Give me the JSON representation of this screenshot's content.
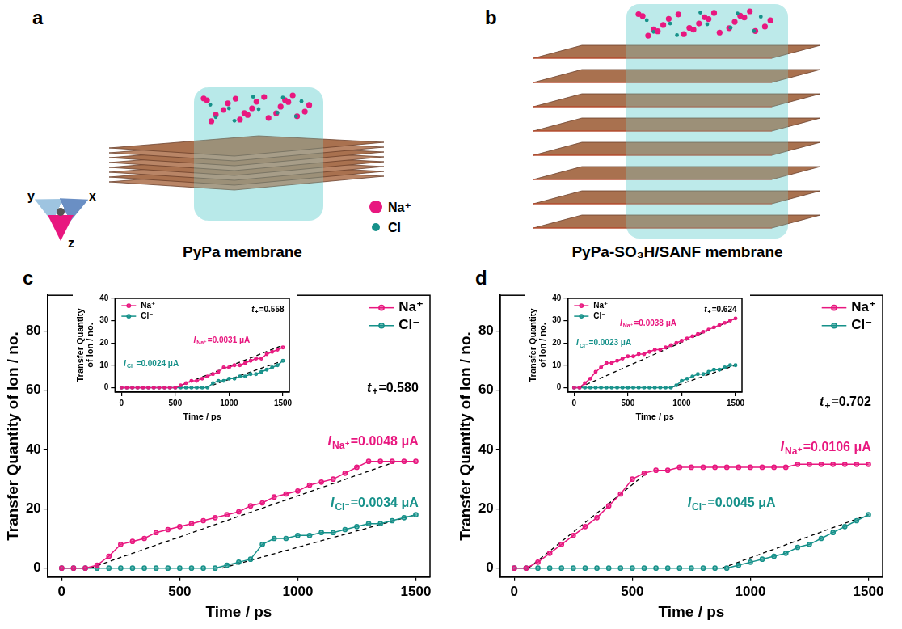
{
  "panels": [
    {
      "letter": "a",
      "caption": "PyPa membrane"
    },
    {
      "letter": "b",
      "caption": "PyPa-SO₃H/SANF membrane"
    }
  ],
  "axes_labels": [
    "y",
    "x",
    "z"
  ],
  "species": [
    {
      "name": "Na⁺",
      "color": "#e8177f"
    },
    {
      "name": "Cl⁻",
      "color": "#16918a"
    }
  ],
  "chart_data": [
    {
      "type": "line",
      "label": "c",
      "x_label": "Time / ps",
      "y_label": "Transfer Quantity of Ion / no.",
      "x": [
        0,
        50,
        100,
        150,
        200,
        250,
        300,
        350,
        400,
        450,
        500,
        550,
        600,
        650,
        700,
        750,
        800,
        850,
        900,
        950,
        1000,
        1050,
        1100,
        1150,
        1200,
        1250,
        1300,
        1350,
        1400,
        1450,
        1500
      ],
      "series": [
        {
          "name": "Na⁺",
          "color": "#e8177f",
          "values": [
            0,
            0,
            0,
            1,
            4,
            8,
            9,
            10,
            12,
            13,
            14,
            15,
            16,
            17,
            18,
            19,
            21,
            22,
            24,
            25,
            26,
            28,
            29,
            30,
            32,
            34,
            36,
            36,
            36,
            36,
            36
          ]
        },
        {
          "name": "Cl⁻",
          "color": "#16918a",
          "values": [
            0,
            0,
            0,
            0,
            0,
            0,
            0,
            0,
            0,
            0,
            0,
            0,
            0,
            0,
            1,
            2,
            3,
            8,
            10,
            10,
            11,
            11,
            12,
            12,
            13,
            14,
            15,
            15,
            16,
            17,
            18
          ]
        }
      ],
      "fit_lines": [
        {
          "x": [
            120,
            1420
          ],
          "values": [
            0,
            36
          ],
          "color": "#000000",
          "line_style": "dashed"
        },
        {
          "x": [
            680,
            1500
          ],
          "values": [
            0,
            18
          ],
          "color": "#000000",
          "line_style": "dashed"
        }
      ],
      "xlim": [
        -60,
        1560
      ],
      "ylim": [
        -3,
        92
      ],
      "xticks": [
        0,
        500,
        1000,
        1500
      ],
      "yticks": [
        0,
        20,
        40,
        60,
        80
      ],
      "grid": false,
      "legend": "top-right",
      "marker": "circle",
      "annotations": [
        {
          "text": "t",
          "subscript": "+",
          "suffix": "=0.580",
          "color": "#000000"
        },
        {
          "text": "I",
          "subscript": "Na⁺",
          "suffix": "=0.0048 μA",
          "color": "#e8177f"
        },
        {
          "text": "I",
          "subscript": "Cl⁻",
          "suffix": "=0.0034 μA",
          "color": "#16918a"
        }
      ],
      "inset": {
        "type": "line",
        "x_label": "Time / ps",
        "y_label": "Transfer Quantity of Ion / no.",
        "x": [
          0,
          50,
          100,
          150,
          200,
          250,
          300,
          350,
          400,
          450,
          500,
          550,
          600,
          650,
          700,
          750,
          800,
          850,
          900,
          950,
          1000,
          1050,
          1100,
          1150,
          1200,
          1250,
          1300,
          1350,
          1400,
          1450,
          1500
        ],
        "series": [
          {
            "name": "Na⁺",
            "color": "#e8177f",
            "values": [
              0,
              0,
              0,
              0,
              0,
              0,
              0,
              0,
              0,
              0,
              0,
              1,
              2,
              3,
              3,
              4,
              5,
              6,
              7,
              9,
              9,
              10,
              10,
              11,
              12,
              13,
              13,
              15,
              16,
              17,
              18
            ]
          },
          {
            "name": "Cl⁻",
            "color": "#16918a",
            "values": [
              0,
              0,
              0,
              0,
              0,
              0,
              0,
              0,
              0,
              0,
              0,
              0,
              0,
              0,
              0,
              0,
              0,
              2,
              3,
              3,
              4,
              4,
              5,
              5,
              6,
              6,
              7,
              8,
              9,
              10,
              12
            ]
          }
        ],
        "fit_lines": [
          {
            "x": [
              500,
              1500
            ],
            "values": [
              0,
              19
            ],
            "color": "#000000",
            "line_style": "dashed"
          },
          {
            "x": [
              780,
              1500
            ],
            "values": [
              0,
              12
            ],
            "color": "#000000",
            "line_style": "dashed"
          }
        ],
        "xlim": [
          -60,
          1560
        ],
        "ylim": [
          -2,
          40
        ],
        "xticks": [
          0,
          500,
          1000,
          1500
        ],
        "yticks": [
          0,
          10,
          20,
          30,
          40
        ],
        "grid": false,
        "legend": "top-left",
        "marker": "circle",
        "annotations": [
          {
            "text": "t",
            "subscript": "+",
            "suffix": "=0.558",
            "color": "#000000"
          },
          {
            "text": "I",
            "subscript": "Na⁺",
            "suffix": "=0.0031 μA",
            "color": "#e8177f"
          },
          {
            "text": "I",
            "subscript": "Cl⁻",
            "suffix": "=0.0024 μA",
            "color": "#16918a"
          }
        ]
      }
    },
    {
      "type": "line",
      "label": "d",
      "x_label": "Time / ps",
      "y_label": "Transfer Quantity of Ion / no.",
      "x": [
        0,
        50,
        100,
        150,
        200,
        250,
        300,
        350,
        400,
        450,
        500,
        550,
        600,
        650,
        700,
        750,
        800,
        850,
        900,
        950,
        1000,
        1050,
        1100,
        1150,
        1200,
        1250,
        1300,
        1350,
        1400,
        1450,
        1500
      ],
      "series": [
        {
          "name": "Na⁺",
          "color": "#e8177f",
          "values": [
            0,
            0,
            2,
            5,
            8,
            11,
            14,
            17,
            21,
            25,
            30,
            32,
            33,
            33,
            34,
            34,
            34,
            34,
            34,
            34,
            34,
            34,
            34,
            34,
            35,
            35,
            35,
            35,
            35,
            35,
            35
          ]
        },
        {
          "name": "Cl⁻",
          "color": "#16918a",
          "values": [
            0,
            0,
            0,
            0,
            0,
            0,
            0,
            0,
            0,
            0,
            0,
            0,
            0,
            0,
            0,
            0,
            0,
            0,
            0,
            1,
            2,
            3,
            4,
            5,
            7,
            8,
            10,
            12,
            14,
            16,
            18
          ]
        }
      ],
      "fit_lines": [
        {
          "x": [
            60,
            560
          ],
          "values": [
            0,
            32
          ],
          "color": "#000000",
          "line_style": "dashed"
        },
        {
          "x": [
            880,
            1500
          ],
          "values": [
            0,
            18
          ],
          "color": "#000000",
          "line_style": "dashed"
        }
      ],
      "xlim": [
        -60,
        1560
      ],
      "ylim": [
        -3,
        92
      ],
      "xticks": [
        0,
        500,
        1000,
        1500
      ],
      "yticks": [
        0,
        20,
        40,
        60,
        80
      ],
      "grid": false,
      "legend": "top-right",
      "marker": "circle",
      "annotations": [
        {
          "text": "t",
          "subscript": "+",
          "suffix": "=0.702",
          "color": "#000000"
        },
        {
          "text": "I",
          "subscript": "Na⁺",
          "suffix": "=0.0106 μA",
          "color": "#e8177f"
        },
        {
          "text": "I",
          "subscript": "Cl⁻",
          "suffix": "=0.0045 μA",
          "color": "#16918a"
        }
      ],
      "inset": {
        "type": "line",
        "x_label": "Time / ps",
        "y_label": "Transfer Quantity of Ion / no.",
        "x": [
          0,
          50,
          100,
          150,
          200,
          250,
          300,
          350,
          400,
          450,
          500,
          550,
          600,
          650,
          700,
          750,
          800,
          850,
          900,
          950,
          1000,
          1050,
          1100,
          1150,
          1200,
          1250,
          1300,
          1350,
          1400,
          1450,
          1500
        ],
        "series": [
          {
            "name": "Na⁺",
            "color": "#e8177f",
            "values": [
              0,
              0,
              2,
              4,
              7,
              9,
              11,
              11,
              12,
              13,
              14,
              14,
              15,
              15,
              16,
              17,
              17,
              18,
              19,
              20,
              21,
              22,
              23,
              24,
              25,
              26,
              27,
              28,
              29,
              30,
              31
            ]
          },
          {
            "name": "Cl⁻",
            "color": "#16918a",
            "values": [
              0,
              0,
              0,
              0,
              0,
              0,
              0,
              0,
              0,
              0,
              0,
              0,
              0,
              0,
              0,
              0,
              0,
              0,
              0,
              1,
              3,
              4,
              5,
              6,
              6,
              7,
              8,
              8,
              9,
              10,
              10
            ]
          }
        ],
        "fit_lines": [
          {
            "x": [
              50,
              1500
            ],
            "values": [
              0,
              31
            ],
            "color": "#000000",
            "line_style": "dashed"
          },
          {
            "x": [
              900,
              1500
            ],
            "values": [
              0,
              10
            ],
            "color": "#000000",
            "line_style": "dashed"
          }
        ],
        "xlim": [
          -60,
          1560
        ],
        "ylim": [
          -2,
          40
        ],
        "xticks": [
          0,
          500,
          1000,
          1500
        ],
        "yticks": [
          0,
          10,
          20,
          30,
          40
        ],
        "grid": false,
        "legend": "top-left",
        "marker": "circle",
        "annotations": [
          {
            "text": "t",
            "subscript": "+",
            "suffix": "=0.624",
            "color": "#000000"
          },
          {
            "text": "I",
            "subscript": "Na⁺",
            "suffix": "=0.0038 μA",
            "color": "#e8177f"
          },
          {
            "text": "I",
            "subscript": "Cl⁻",
            "suffix": "=0.0023 μA",
            "color": "#16918a"
          }
        ]
      }
    }
  ]
}
